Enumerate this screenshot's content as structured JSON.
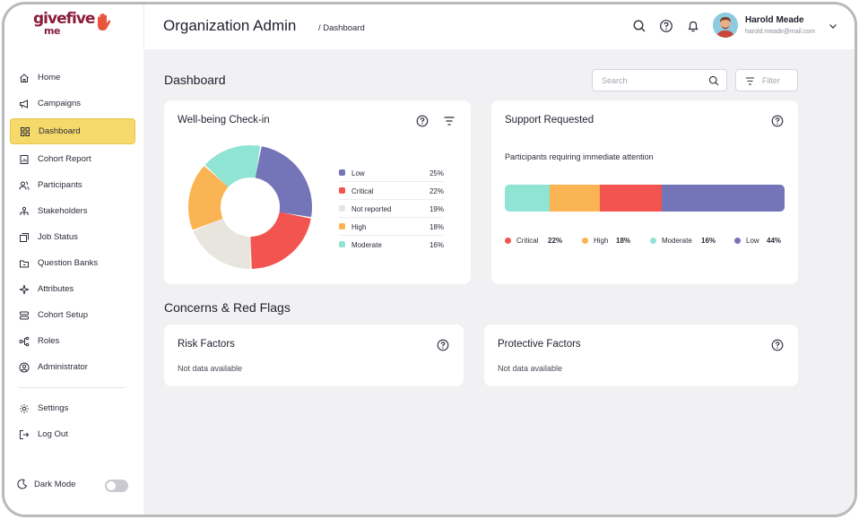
{
  "logo": {
    "text_top": "give",
    "text_bottom": "me",
    "text_right": "five"
  },
  "sidebar": {
    "items": [
      {
        "label": "Home",
        "icon": "home-icon"
      },
      {
        "label": "Campaigns",
        "icon": "megaphone-icon"
      },
      {
        "label": "Dashboard",
        "icon": "grid-icon",
        "active": true
      },
      {
        "label": "Cohort Report",
        "icon": "report-icon"
      },
      {
        "label": "Participants",
        "icon": "users-icon"
      },
      {
        "label": "Stakeholders",
        "icon": "stakeholders-icon"
      },
      {
        "label": "Job Status",
        "icon": "job-status-icon"
      },
      {
        "label": "Question Banks",
        "icon": "folder-icon"
      },
      {
        "label": "Attributes",
        "icon": "sparkle-icon"
      },
      {
        "label": "Cohort Setup",
        "icon": "setup-icon"
      },
      {
        "label": "Roles",
        "icon": "roles-icon"
      },
      {
        "label": "Administrator",
        "icon": "admin-icon"
      }
    ],
    "bottom": [
      {
        "label": "Settings",
        "icon": "gear-icon"
      },
      {
        "label": "Log Out",
        "icon": "logout-icon"
      }
    ],
    "dark_mode_label": "Dark Mode",
    "dark_mode_on": false
  },
  "header": {
    "title": "Organization Admin",
    "breadcrumb": "/ Dashboard",
    "user_name": "Harold Meade",
    "user_email": "harold.meade@mail.com"
  },
  "main": {
    "title": "Dashboard",
    "search_placeholder": "Search",
    "filter_label": "Filter"
  },
  "wellbeing": {
    "title": "Well-being Check-in",
    "legend": [
      {
        "label": "Low",
        "value": "25%",
        "color": "#7474b8"
      },
      {
        "label": "Critical",
        "value": "22%",
        "color": "#f2554f"
      },
      {
        "label": "Not reported",
        "value": "19%",
        "color": "#e8e5df"
      },
      {
        "label": "High",
        "value": "18%",
        "color": "#fbb453"
      },
      {
        "label": "Moderate",
        "value": "16%",
        "color": "#8fe4d4"
      }
    ]
  },
  "support": {
    "title": "Support Requested",
    "subtitle": "Participants requiring immediate attention",
    "legend": [
      {
        "label": "Critical",
        "value": "22%",
        "color": "#f2554f"
      },
      {
        "label": "High",
        "value": "18%",
        "color": "#fbb453"
      },
      {
        "label": "Moderate",
        "value": "16%",
        "color": "#8fe4d4"
      },
      {
        "label": "Low",
        "value": "44%",
        "color": "#7474b8"
      }
    ]
  },
  "chart_data": [
    {
      "type": "pie",
      "categories": [
        "Low",
        "Critical",
        "Not reported",
        "High",
        "Moderate"
      ],
      "values": [
        25,
        22,
        19,
        18,
        16
      ],
      "title": "Well-being Check-in"
    },
    {
      "type": "bar",
      "categories": [
        "Moderate",
        "High",
        "Critical",
        "Low"
      ],
      "values": [
        16,
        18,
        22,
        44
      ],
      "title": "Support Requested"
    }
  ],
  "concerns": {
    "title": "Concerns & Red Flags",
    "risk": {
      "title": "Risk Factors",
      "empty_text": "Not data available"
    },
    "protective": {
      "title": "Protective Factors",
      "empty_text": "Not data available"
    }
  }
}
